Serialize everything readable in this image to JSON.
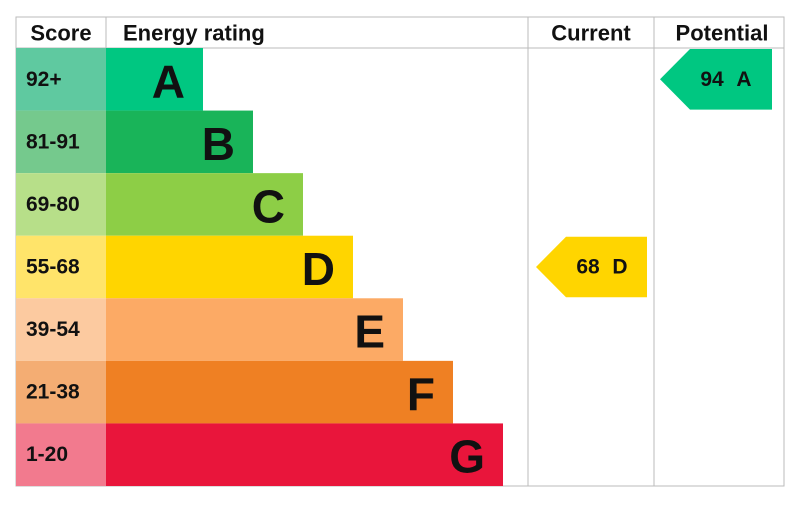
{
  "header": {
    "score": "Score",
    "energy_rating": "Energy rating",
    "current": "Current",
    "potential": "Potential"
  },
  "bands": [
    {
      "score": "92+",
      "letter": "A",
      "color": "#00c781",
      "score_color": "#5fc9a0"
    },
    {
      "score": "81-91",
      "letter": "B",
      "color": "#19b459",
      "score_color": "#75c98d"
    },
    {
      "score": "69-80",
      "letter": "C",
      "color": "#8dce46",
      "score_color": "#b7df89"
    },
    {
      "score": "55-68",
      "letter": "D",
      "color": "#ffd500",
      "score_color": "#ffe46a"
    },
    {
      "score": "39-54",
      "letter": "E",
      "color": "#fcaa65",
      "score_color": "#fccaa0"
    },
    {
      "score": "21-38",
      "letter": "F",
      "color": "#ef8023",
      "score_color": "#f4ad73"
    },
    {
      "score": "1-20",
      "letter": "G",
      "color": "#e9153b",
      "score_color": "#f27a8e"
    }
  ],
  "current": {
    "value": 68,
    "letter": "D"
  },
  "potential": {
    "value": 94,
    "letter": "A"
  }
}
